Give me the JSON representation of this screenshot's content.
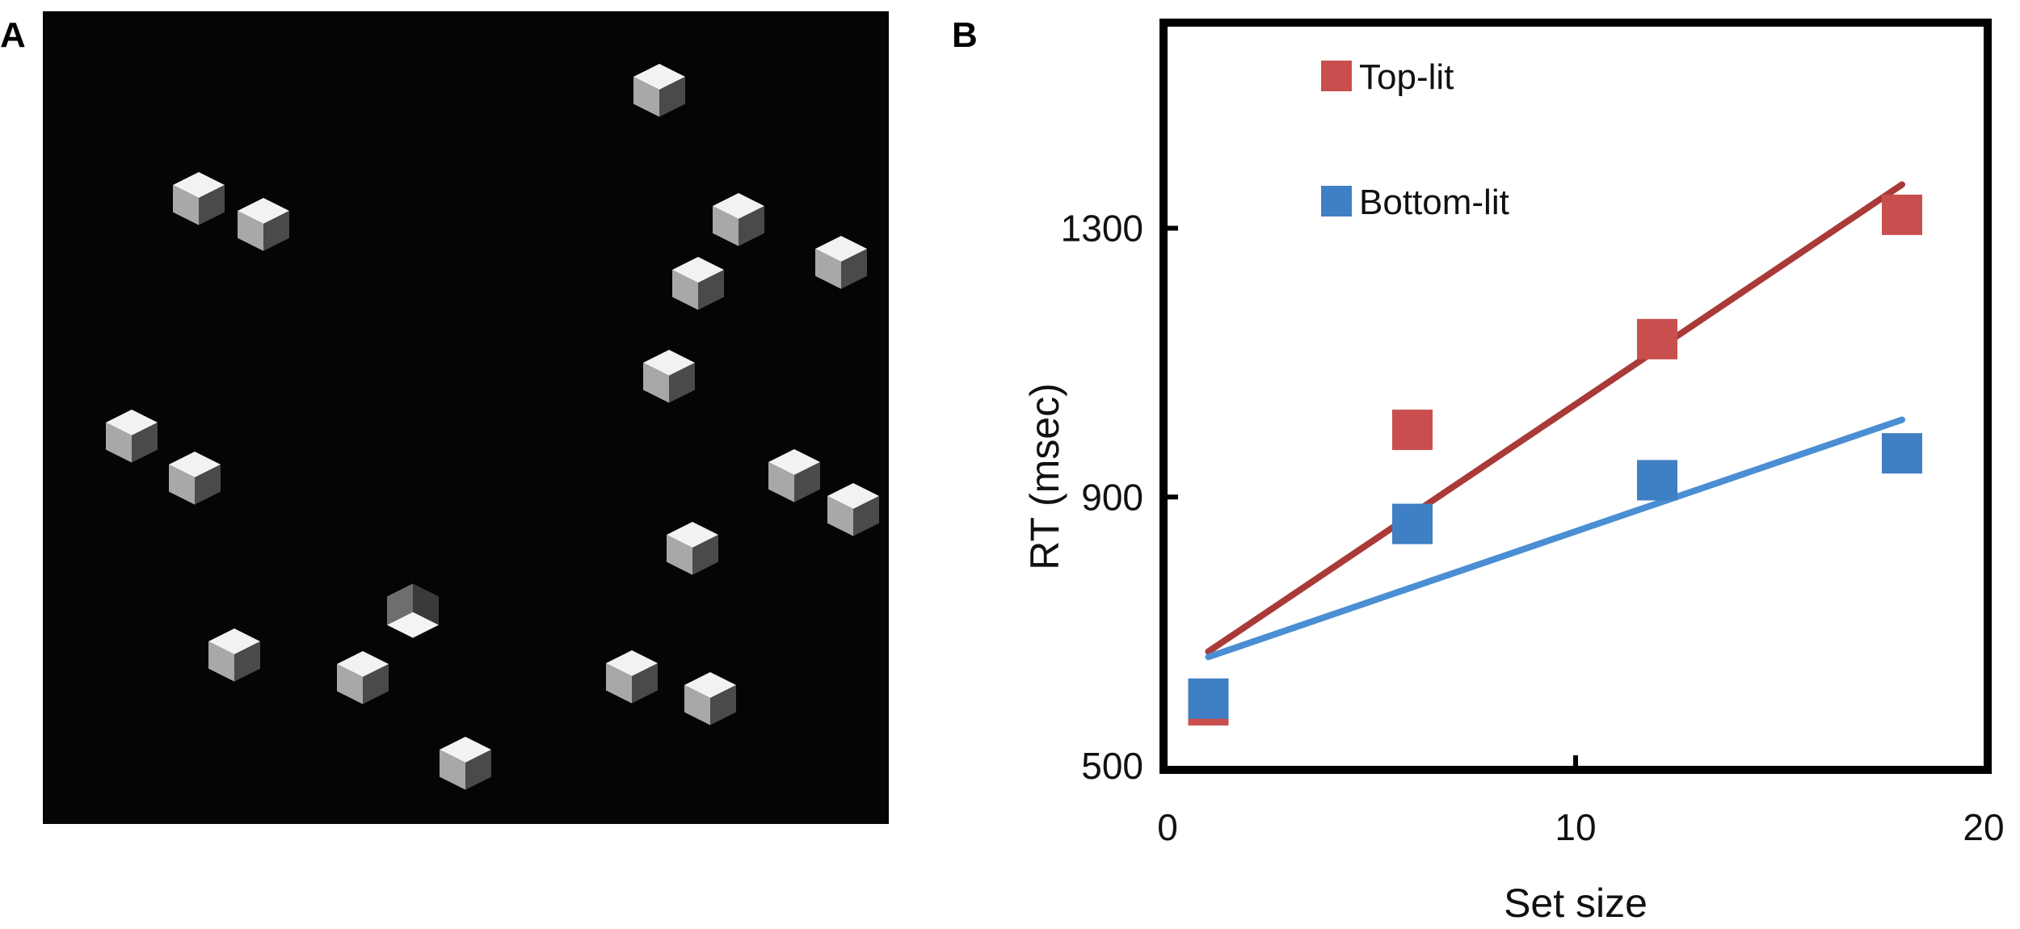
{
  "panel_labels": {
    "a": "A",
    "b": "B"
  },
  "stimulus": {
    "background_color": "#050505",
    "item_type": "shaded cube",
    "top_lit_items": 18,
    "bottom_lit_items": 1
  },
  "chart_data": {
    "type": "scatter",
    "title": "",
    "xlabel": "Set size",
    "ylabel": "RT (msec)",
    "xlim": [
      0,
      20
    ],
    "ylim": [
      500,
      1600
    ],
    "xticks": [
      "0",
      "10",
      "20"
    ],
    "yticks": [
      "500",
      "900",
      "1300"
    ],
    "ytick_values": [
      500,
      900,
      1300
    ],
    "xtick_values": [
      0,
      10,
      20
    ],
    "grid": false,
    "legend_position": "top-left",
    "series": [
      {
        "name": "Top-lit",
        "color": "#c94f4e",
        "line_color": "#a93a38",
        "points": [
          [
            1,
            590
          ],
          [
            6,
            1000
          ],
          [
            12,
            1135
          ],
          [
            18,
            1320
          ]
        ],
        "fit": [
          [
            1,
            670
          ],
          [
            18,
            1365
          ]
        ]
      },
      {
        "name": "Bottom-lit",
        "color": "#3f7fc4",
        "line_color": "#4a8ed3",
        "points": [
          [
            1,
            600
          ],
          [
            6,
            860
          ],
          [
            12,
            925
          ],
          [
            18,
            965
          ]
        ],
        "fit": [
          [
            1,
            662
          ],
          [
            18,
            1015
          ]
        ]
      }
    ]
  }
}
